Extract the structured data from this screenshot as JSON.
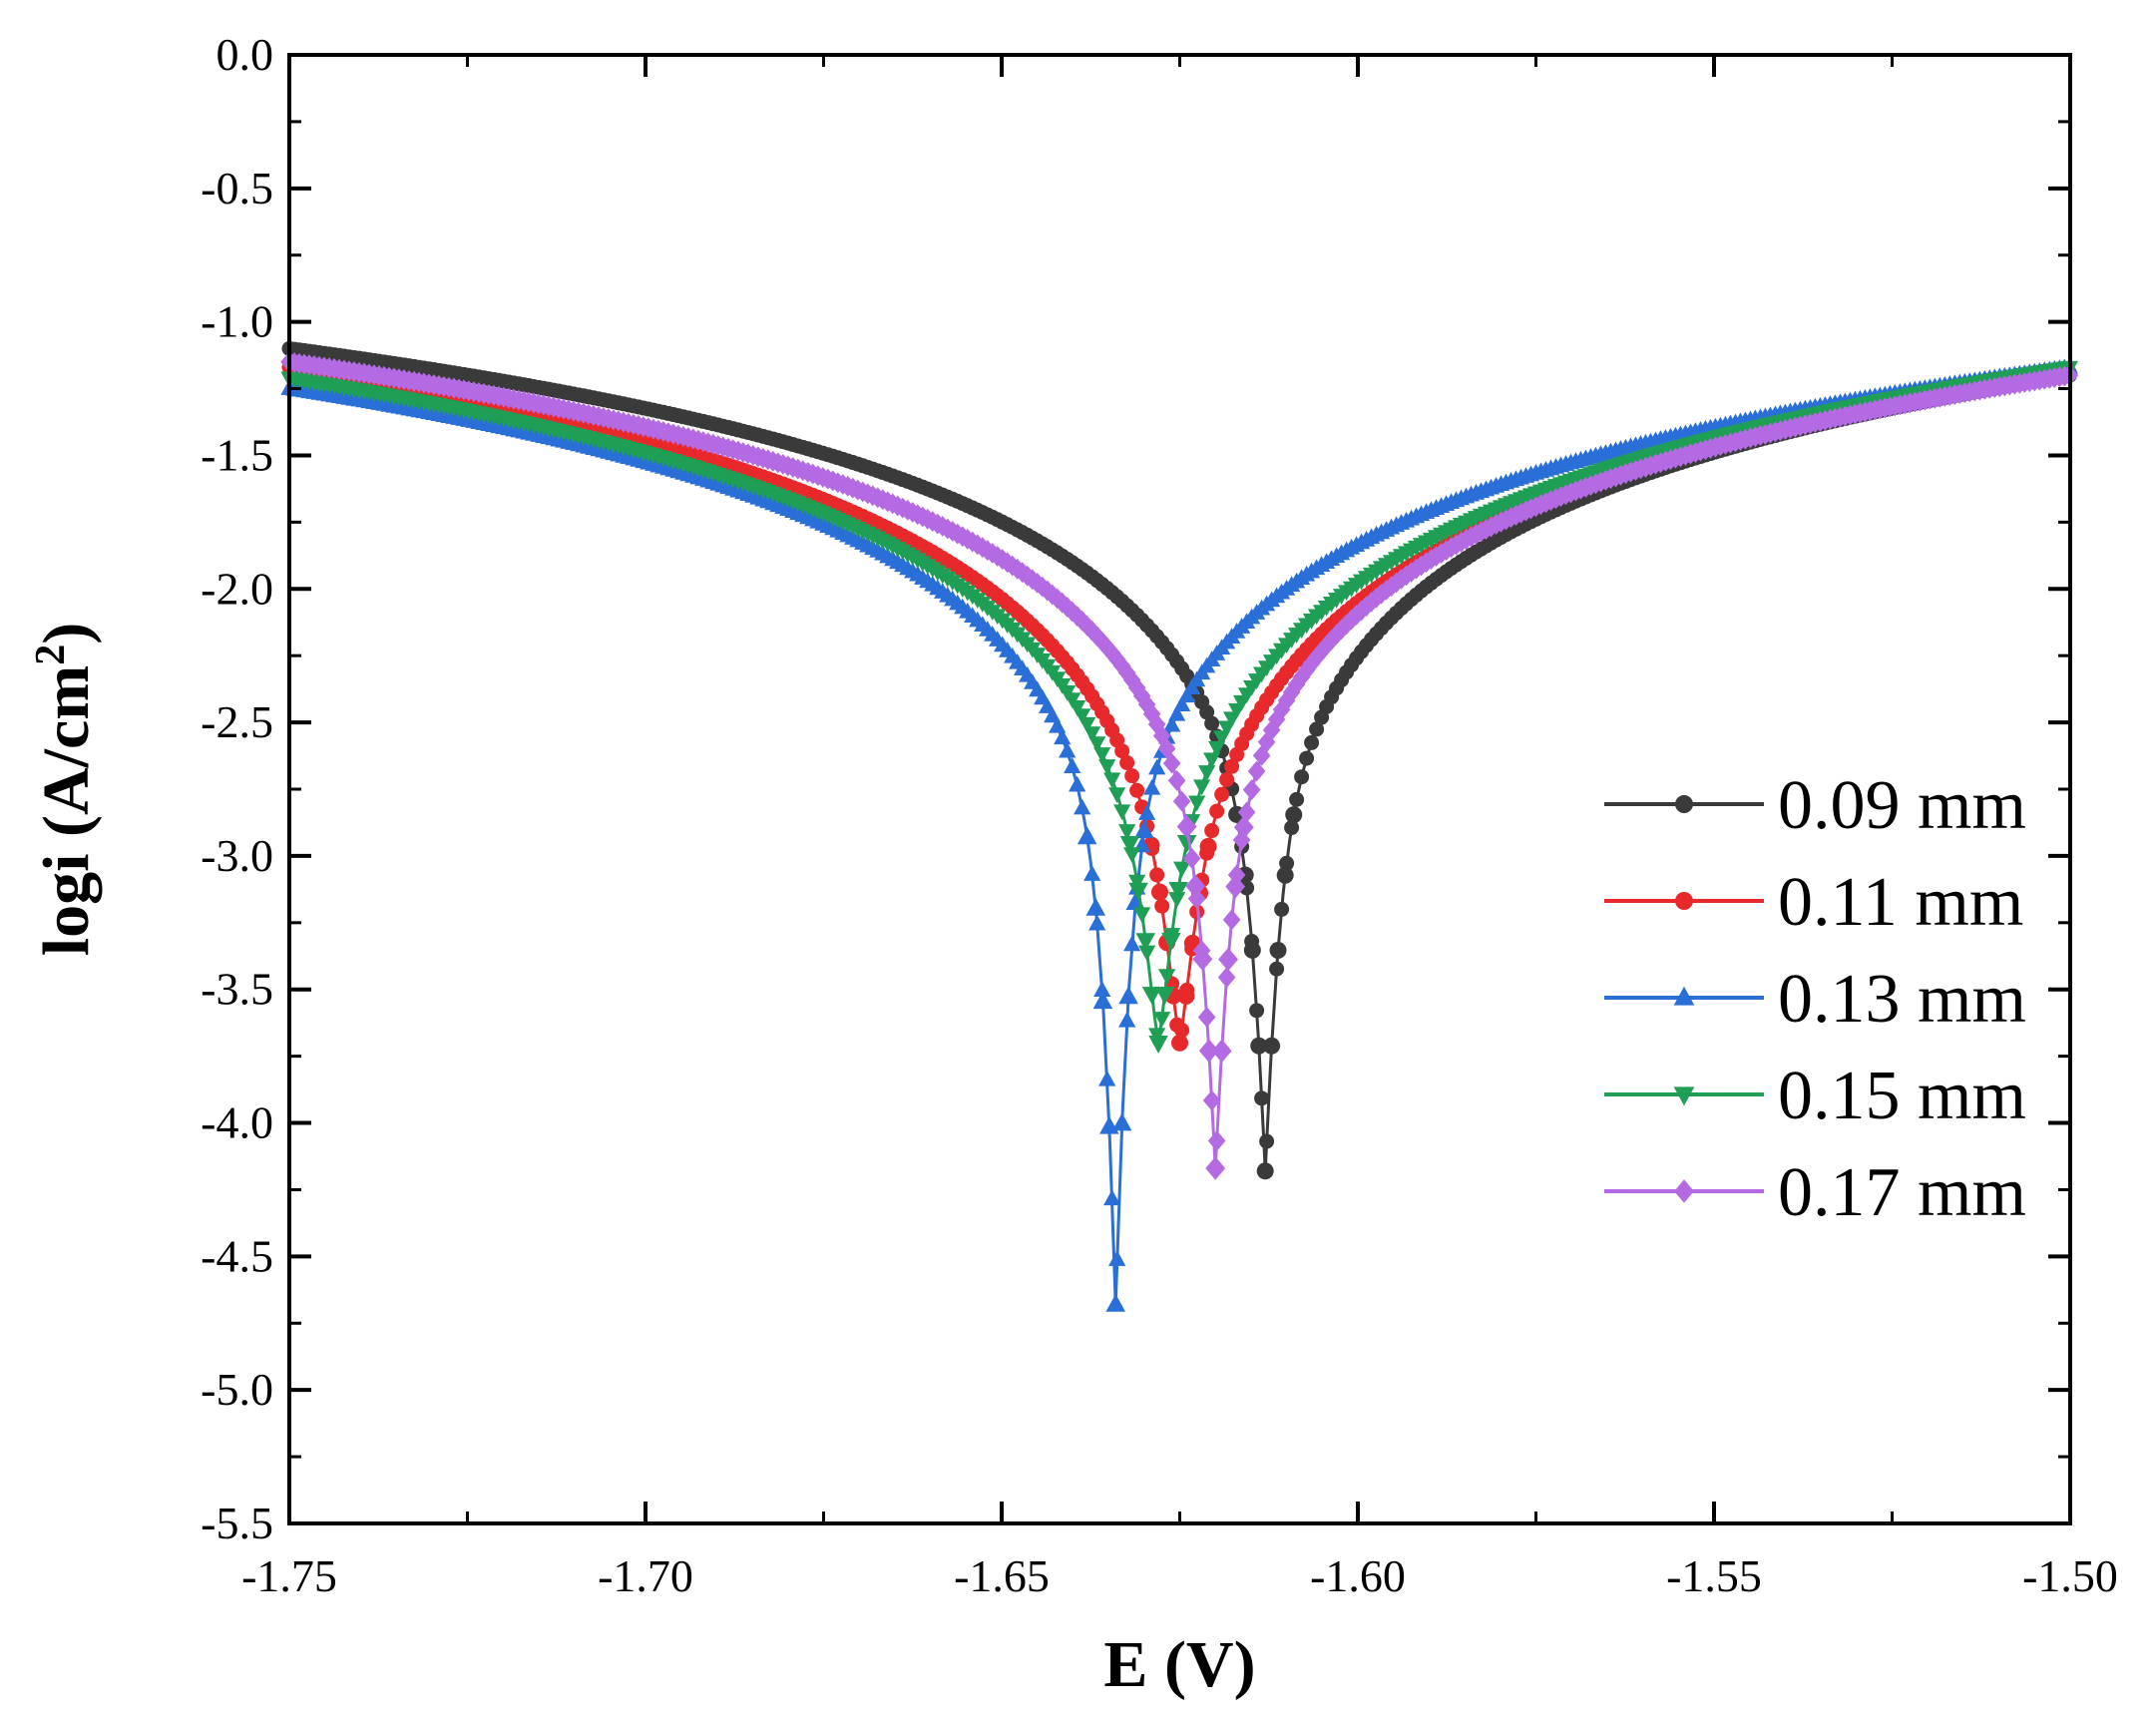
{
  "chart_data": {
    "type": "line",
    "title": "",
    "xlabel": "E (V)",
    "ylabel_main": "logi (A/cm",
    "ylabel_sup": "2",
    "ylabel_close": ")",
    "xlim": [
      -1.75,
      -1.5
    ],
    "ylim": [
      -5.5,
      0.0
    ],
    "xticks": [
      -1.75,
      -1.7,
      -1.65,
      -1.6,
      -1.55,
      -1.5
    ],
    "xtick_labels": [
      "-1.75",
      "-1.70",
      "-1.65",
      "-1.60",
      "-1.55",
      "-1.50"
    ],
    "yticks": [
      0.0,
      -0.5,
      -1.0,
      -1.5,
      -2.0,
      -2.5,
      -3.0,
      -3.5,
      -4.0,
      -4.5,
      -5.0,
      -5.5
    ],
    "ytick_labels": [
      "0.0",
      "-0.5",
      "-1.0",
      "-1.5",
      "-2.0",
      "-2.5",
      "-3.0",
      "-3.5",
      "-4.0",
      "-4.5",
      "-5.0",
      "-5.5"
    ],
    "grid": false,
    "legend_position": "right",
    "series": [
      {
        "name": "0.09 mm",
        "color": "#3a3a3a",
        "marker": "circle",
        "ecorr": -1.613,
        "peak": -4.18,
        "a_left": -1.1,
        "a_right": -1.2,
        "deep_left": -3.3,
        "deep_right": -3.3
      },
      {
        "name": "0.11 mm",
        "color": "#e8292b",
        "marker": "circle",
        "ecorr": -1.625,
        "peak": -3.7,
        "a_left": -1.17,
        "a_right": -1.19,
        "deep_left": -3.52,
        "deep_right": -3.52
      },
      {
        "name": "0.13 mm",
        "color": "#2a6fd8",
        "marker": "triangle-up",
        "ecorr": -1.634,
        "peak": -4.68,
        "a_left": -1.25,
        "a_right": -1.17,
        "deep_left": -3.34,
        "deep_right": -3.31
      },
      {
        "name": "0.15 mm",
        "color": "#1f9e55",
        "marker": "triangle-down",
        "ecorr": -1.628,
        "peak": -3.7,
        "a_left": -1.21,
        "a_right": -1.17,
        "deep_left": -3.5,
        "deep_right": -3.5
      },
      {
        "name": "0.17 mm",
        "color": "#b36ae2",
        "marker": "diamond",
        "ecorr": -1.62,
        "peak": -4.17,
        "a_left": -1.15,
        "a_right": -1.2,
        "deep_left": -3.36,
        "deep_right": -3.36
      }
    ]
  }
}
